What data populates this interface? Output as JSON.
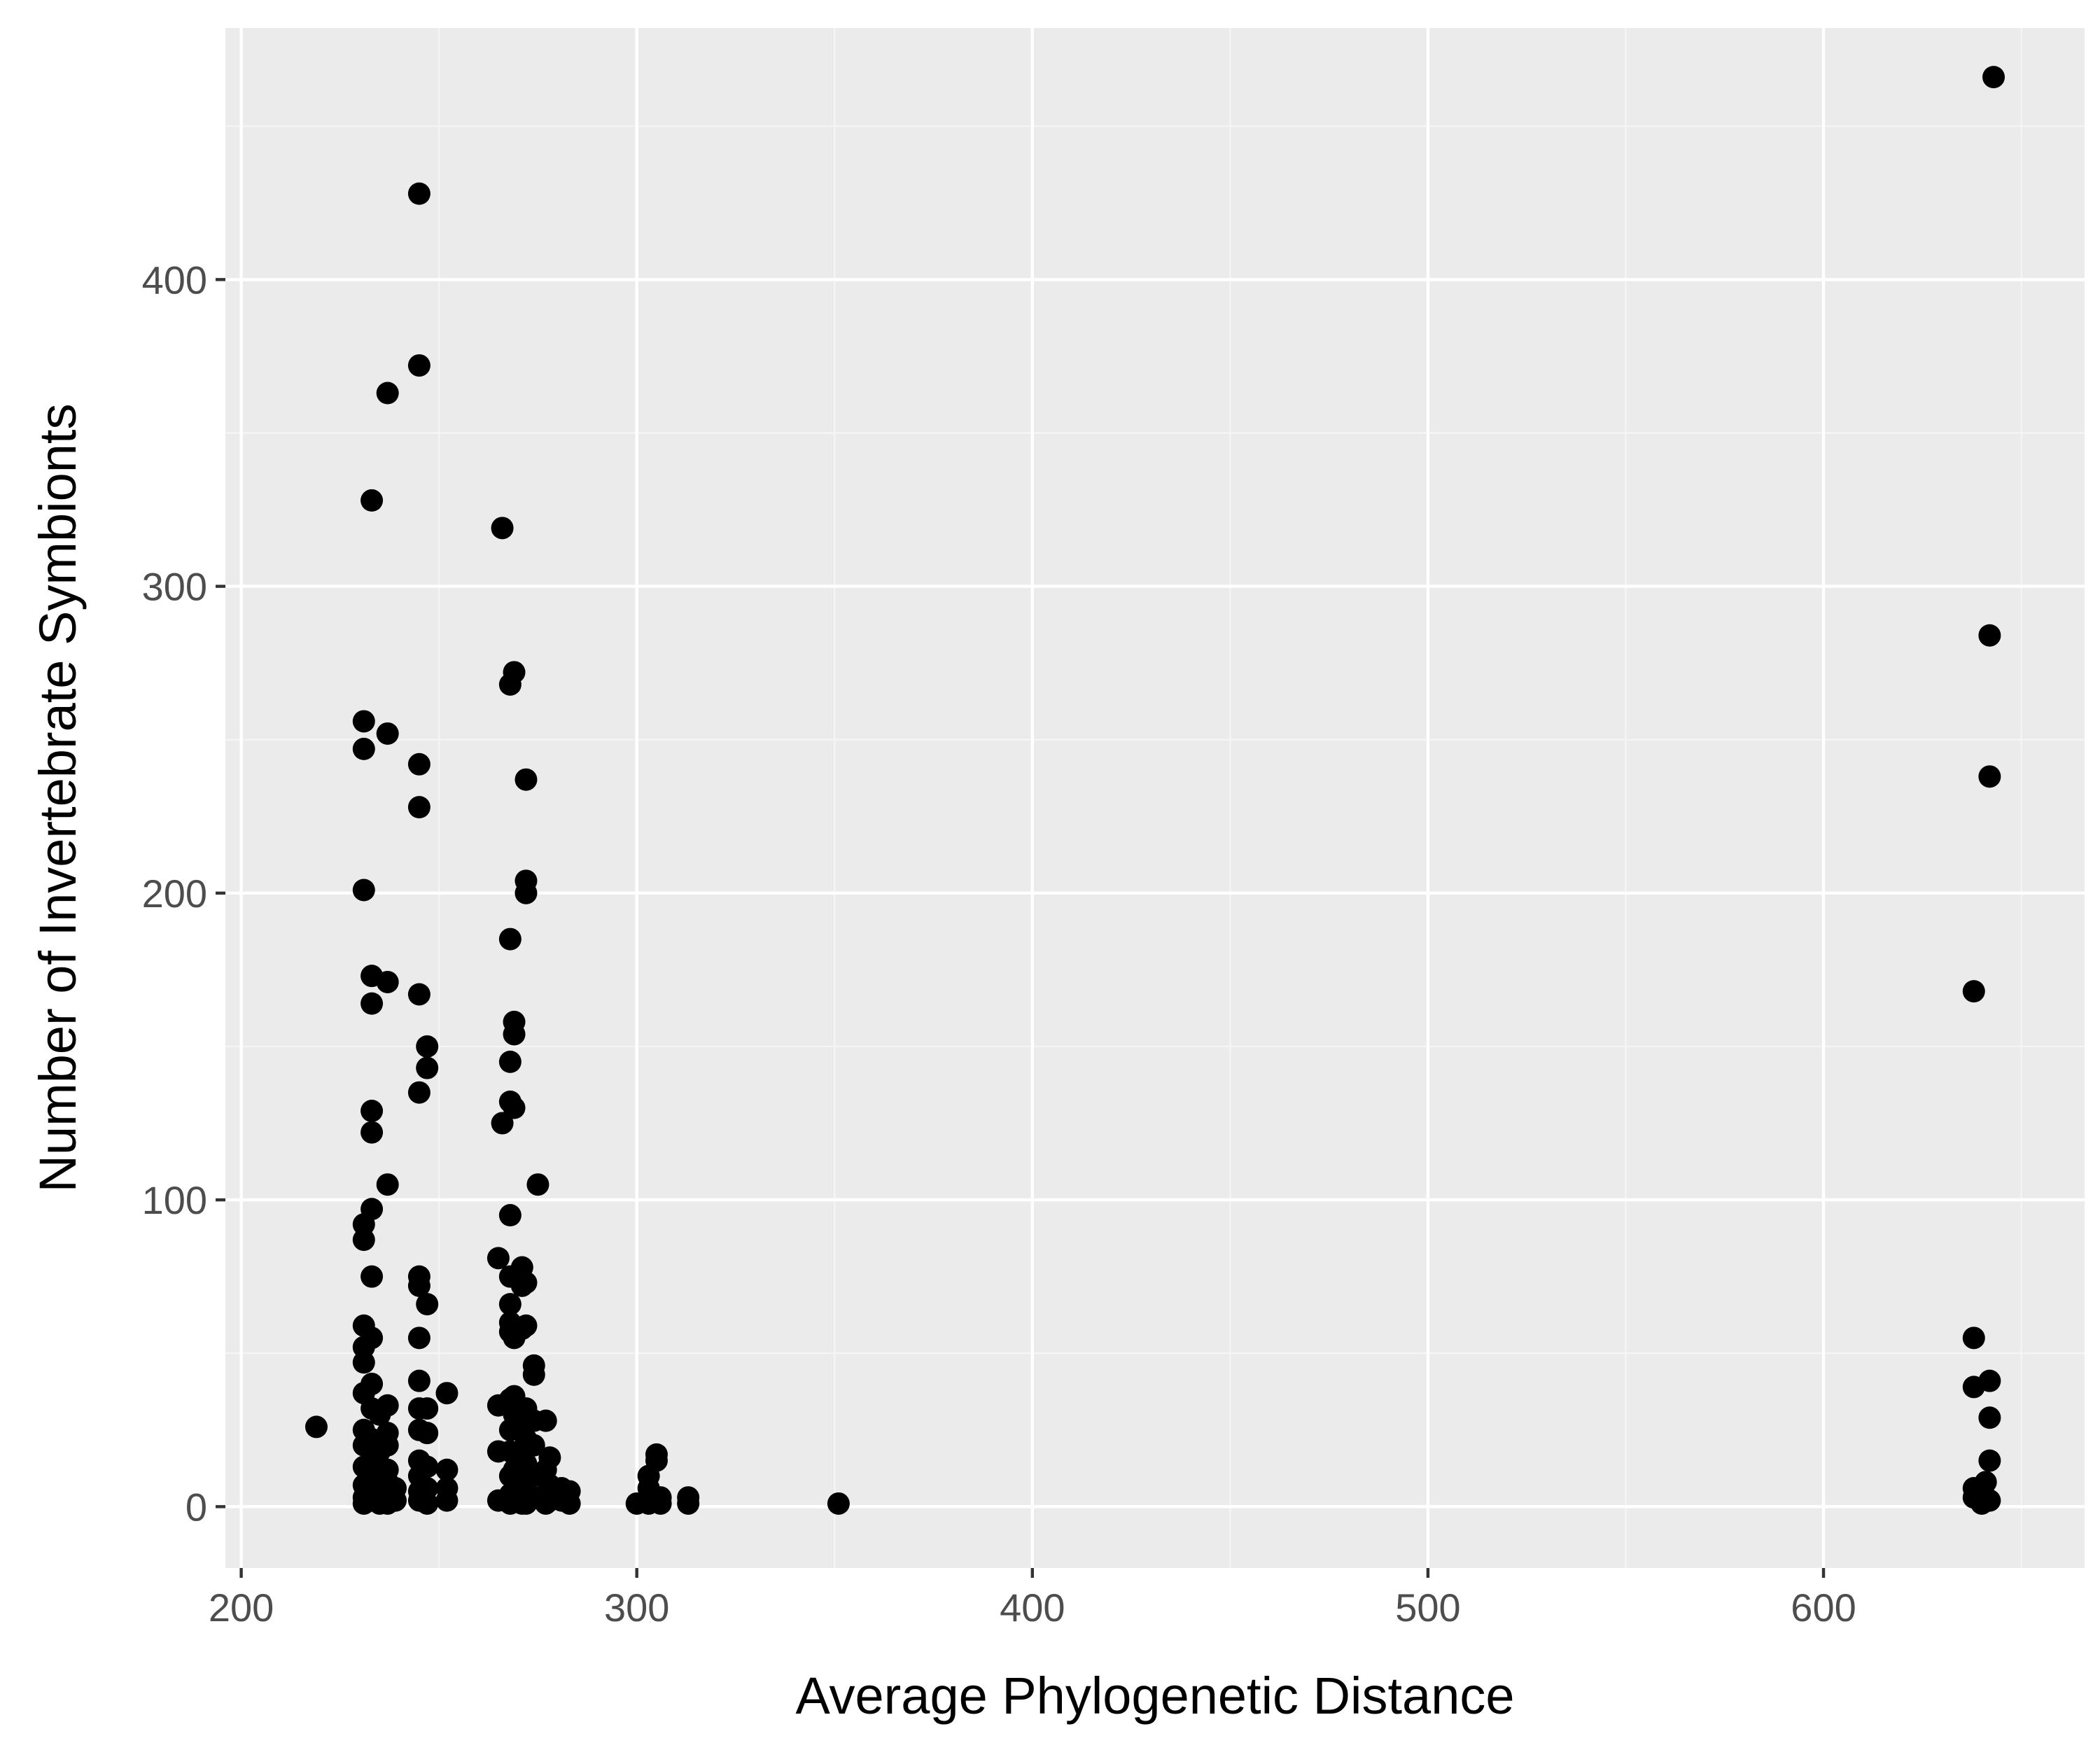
{
  "chart_data": {
    "type": "scatter",
    "title": "",
    "xlabel": "Average Phylogenetic Distance",
    "ylabel": "Number of Invertebrate Symbionts",
    "xlim": [
      196,
      666
    ],
    "ylim": [
      -20,
      482
    ],
    "x_ticks": [
      200,
      300,
      400,
      500,
      600
    ],
    "x_tick_labels": [
      "200",
      "300",
      "400",
      "500",
      "600"
    ],
    "x_minor_ticks": [
      250,
      350,
      450,
      550,
      650
    ],
    "y_ticks": [
      0,
      100,
      200,
      300,
      400
    ],
    "y_tick_labels": [
      "0",
      "100",
      "200",
      "300",
      "400"
    ],
    "y_minor_ticks": [
      50,
      150,
      250,
      350,
      450
    ],
    "grid": true,
    "legend": "none",
    "colors": {
      "panel_background": "#ebebeb",
      "grid_major": "#ffffff",
      "grid_minor": "#f5f5f5",
      "point": "#000000",
      "tick_text": "#4d4d4d",
      "axis_title": "#000000"
    },
    "series": [
      {
        "points": [
          [
            219,
            26
          ],
          [
            231,
            256
          ],
          [
            231,
            247
          ],
          [
            231,
            201
          ],
          [
            231,
            92
          ],
          [
            231,
            87
          ],
          [
            231,
            59
          ],
          [
            231,
            52
          ],
          [
            231,
            47
          ],
          [
            231,
            37
          ],
          [
            231,
            25
          ],
          [
            231,
            20
          ],
          [
            231,
            13
          ],
          [
            231,
            7
          ],
          [
            231,
            3
          ],
          [
            231,
            1
          ],
          [
            233,
            328
          ],
          [
            233,
            173
          ],
          [
            233,
            164
          ],
          [
            233,
            129
          ],
          [
            233,
            122
          ],
          [
            233,
            97
          ],
          [
            233,
            75
          ],
          [
            233,
            55
          ],
          [
            233,
            40
          ],
          [
            233,
            32
          ],
          [
            233,
            22
          ],
          [
            233,
            15
          ],
          [
            233,
            9
          ],
          [
            233,
            5
          ],
          [
            233,
            2
          ],
          [
            235,
            30
          ],
          [
            235,
            18
          ],
          [
            235,
            10
          ],
          [
            235,
            4
          ],
          [
            235,
            1
          ],
          [
            237,
            363
          ],
          [
            237,
            252
          ],
          [
            237,
            171
          ],
          [
            237,
            105
          ],
          [
            237,
            33
          ],
          [
            237,
            24
          ],
          [
            237,
            20
          ],
          [
            237,
            12
          ],
          [
            237,
            8
          ],
          [
            237,
            3
          ],
          [
            237,
            1
          ],
          [
            239,
            6
          ],
          [
            239,
            2
          ],
          [
            245,
            428
          ],
          [
            245,
            372
          ],
          [
            245,
            242
          ],
          [
            245,
            228
          ],
          [
            245,
            167
          ],
          [
            245,
            135
          ],
          [
            245,
            75
          ],
          [
            245,
            72
          ],
          [
            245,
            55
          ],
          [
            245,
            41
          ],
          [
            245,
            32
          ],
          [
            245,
            25
          ],
          [
            245,
            15
          ],
          [
            245,
            10
          ],
          [
            245,
            5
          ],
          [
            245,
            2
          ],
          [
            247,
            150
          ],
          [
            247,
            143
          ],
          [
            247,
            66
          ],
          [
            247,
            32
          ],
          [
            247,
            24
          ],
          [
            247,
            13
          ],
          [
            247,
            6
          ],
          [
            247,
            1
          ],
          [
            252,
            37
          ],
          [
            252,
            12
          ],
          [
            252,
            6
          ],
          [
            252,
            2
          ],
          [
            265,
            81
          ],
          [
            265,
            33
          ],
          [
            265,
            18
          ],
          [
            265,
            2
          ],
          [
            266,
            319
          ],
          [
            266,
            125
          ],
          [
            268,
            268
          ],
          [
            268,
            185
          ],
          [
            268,
            145
          ],
          [
            268,
            132
          ],
          [
            268,
            95
          ],
          [
            268,
            75
          ],
          [
            268,
            66
          ],
          [
            268,
            60
          ],
          [
            268,
            57
          ],
          [
            268,
            35
          ],
          [
            268,
            25
          ],
          [
            268,
            18
          ],
          [
            268,
            10
          ],
          [
            268,
            4
          ],
          [
            268,
            1
          ],
          [
            269,
            272
          ],
          [
            269,
            158
          ],
          [
            269,
            154
          ],
          [
            269,
            130
          ],
          [
            269,
            55
          ],
          [
            269,
            36
          ],
          [
            269,
            30
          ],
          [
            269,
            12
          ],
          [
            269,
            2
          ],
          [
            271,
            78
          ],
          [
            271,
            72
          ],
          [
            271,
            58
          ],
          [
            271,
            28
          ],
          [
            271,
            18
          ],
          [
            271,
            8
          ],
          [
            271,
            1
          ],
          [
            272,
            237
          ],
          [
            272,
            204
          ],
          [
            272,
            200
          ],
          [
            272,
            73
          ],
          [
            272,
            59
          ],
          [
            272,
            32
          ],
          [
            272,
            22
          ],
          [
            272,
            14
          ],
          [
            272,
            6
          ],
          [
            272,
            1
          ],
          [
            274,
            46
          ],
          [
            274,
            43
          ],
          [
            274,
            28
          ],
          [
            274,
            20
          ],
          [
            274,
            10
          ],
          [
            274,
            3
          ],
          [
            275,
            105
          ],
          [
            277,
            28
          ],
          [
            277,
            12
          ],
          [
            277,
            4
          ],
          [
            277,
            1
          ],
          [
            278,
            16
          ],
          [
            278,
            7
          ],
          [
            278,
            2
          ],
          [
            281,
            6
          ],
          [
            281,
            2
          ],
          [
            283,
            5
          ],
          [
            283,
            1
          ],
          [
            300,
            1
          ],
          [
            303,
            10
          ],
          [
            303,
            6
          ],
          [
            303,
            1
          ],
          [
            305,
            17
          ],
          [
            305,
            15
          ],
          [
            306,
            3
          ],
          [
            306,
            1
          ],
          [
            313,
            3
          ],
          [
            313,
            1
          ],
          [
            351,
            1
          ],
          [
            638,
            168
          ],
          [
            638,
            55
          ],
          [
            638,
            39
          ],
          [
            638,
            6
          ],
          [
            638,
            3
          ],
          [
            640,
            1
          ],
          [
            640,
            4
          ],
          [
            641,
            8
          ],
          [
            641,
            3
          ],
          [
            642,
            284
          ],
          [
            642,
            238
          ],
          [
            642,
            41
          ],
          [
            642,
            29
          ],
          [
            642,
            15
          ],
          [
            642,
            2
          ],
          [
            643,
            466
          ]
        ]
      }
    ]
  }
}
